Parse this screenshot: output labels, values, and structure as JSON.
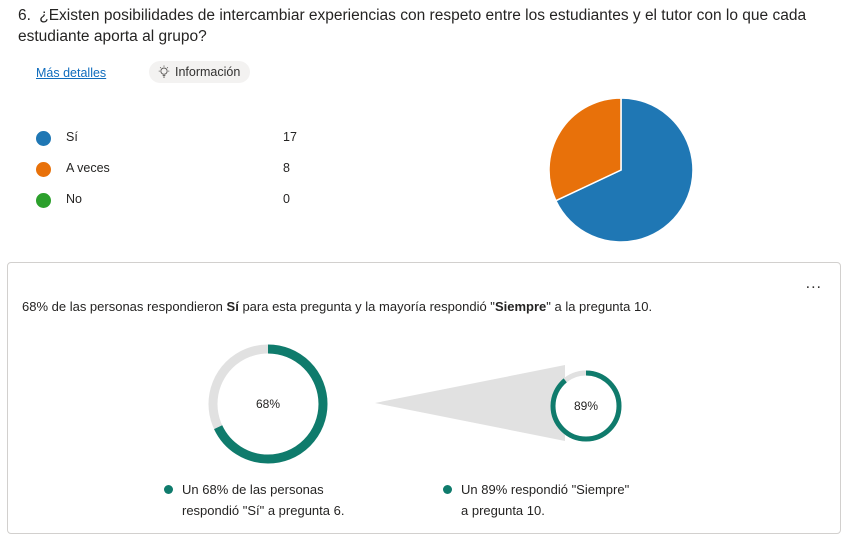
{
  "question": {
    "number": "6.",
    "text": "¿Existen posibilidades de intercambiar experiencias con respeto entre los estudiantes y el tutor con lo que cada estudiante aporta al grupo?"
  },
  "links": {
    "more_details": "Más detalles",
    "info": "Información"
  },
  "legend": [
    {
      "label": "Sí",
      "count": "17",
      "color": "#1f77b4"
    },
    {
      "label": "A veces",
      "count": "8",
      "color": "#e8710a"
    },
    {
      "label": "No",
      "count": "0",
      "color": "#2ca02c"
    }
  ],
  "chart_data": {
    "type": "pie",
    "categories": [
      "Sí",
      "A veces",
      "No"
    ],
    "values": [
      17,
      8,
      0
    ],
    "colors": [
      "#1f77b4",
      "#e8710a",
      "#2ca02c"
    ]
  },
  "insight": {
    "part1": "68% de las personas respondieron ",
    "bold1": "Sí",
    "part2": " para esta pregunta y la mayoría respondió \"",
    "bold2": "Siempre",
    "part3": "\" a la pregunta 10.",
    "menu": "..."
  },
  "donuts": {
    "left": {
      "percent": 68,
      "label": "68%"
    },
    "right": {
      "percent": 89,
      "label": "89%"
    },
    "accent": "#0f7b6c",
    "track": "#e1e1e1"
  },
  "captions": {
    "left_line1": "Un 68% de las personas",
    "left_line2": "respondió \"Sí\" a pregunta 6.",
    "right_line1": "Un 89% respondió \"Siempre\"",
    "right_line2": "a pregunta 10."
  }
}
